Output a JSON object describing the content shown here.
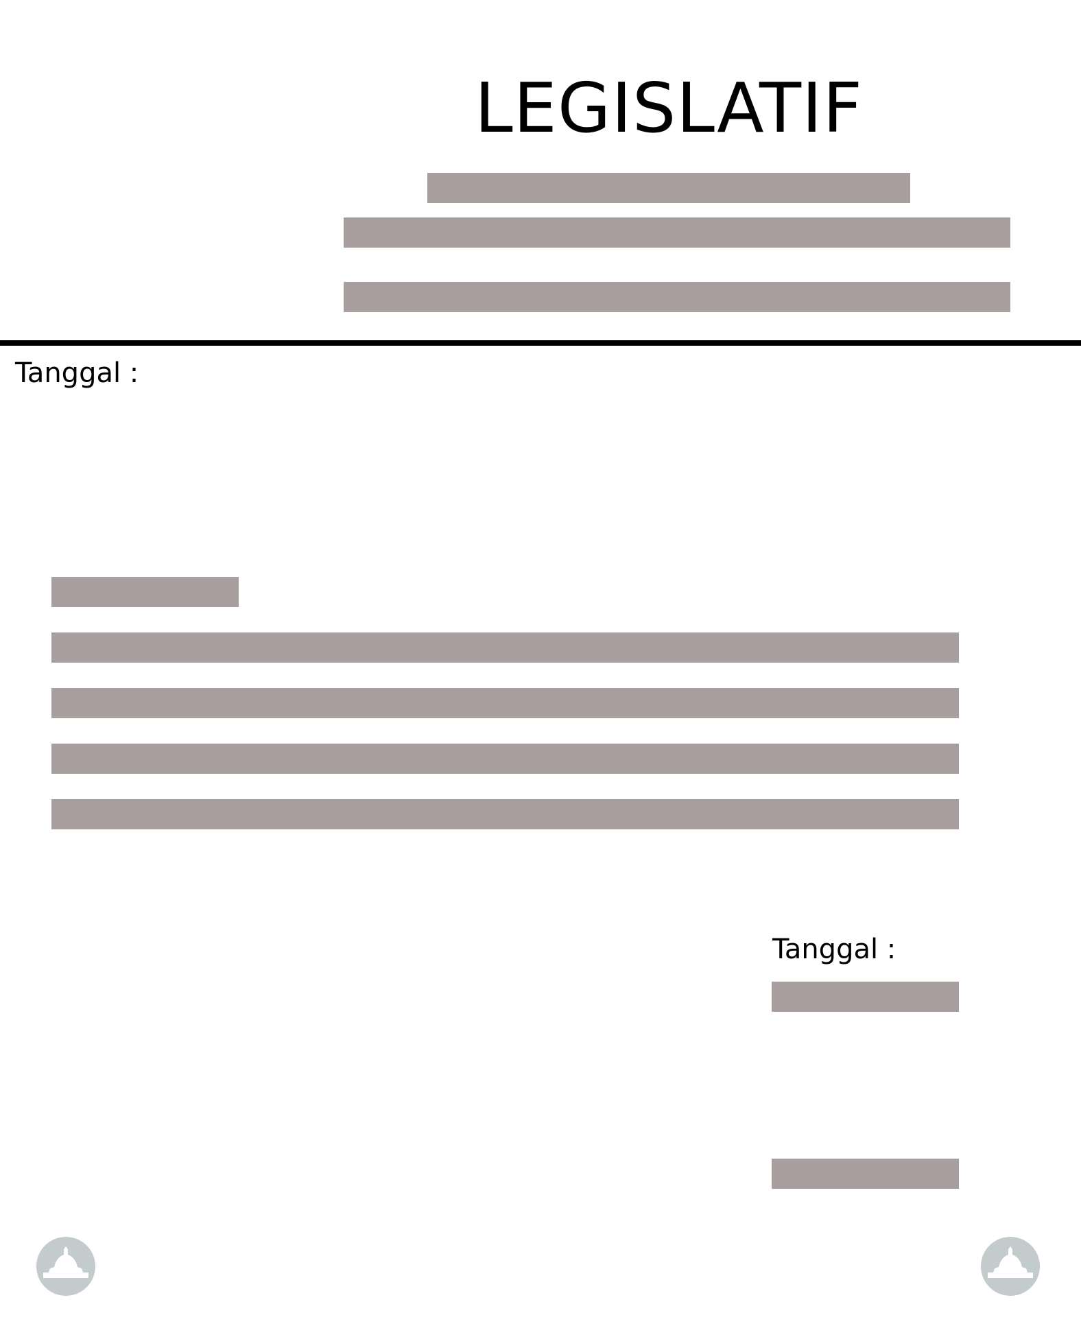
{
  "header": {
    "title": "LEGISLATIF"
  },
  "meta": {
    "date_label": "Tanggal :"
  },
  "signature": {
    "date_label": "Tanggal :"
  },
  "colors": {
    "redaction": "#a89e9d",
    "emblem": "#c3cbcc",
    "rule": "#000000"
  },
  "icons": {
    "left_emblem": "dome-emblem-icon",
    "right_emblem": "dome-emblem-icon"
  }
}
